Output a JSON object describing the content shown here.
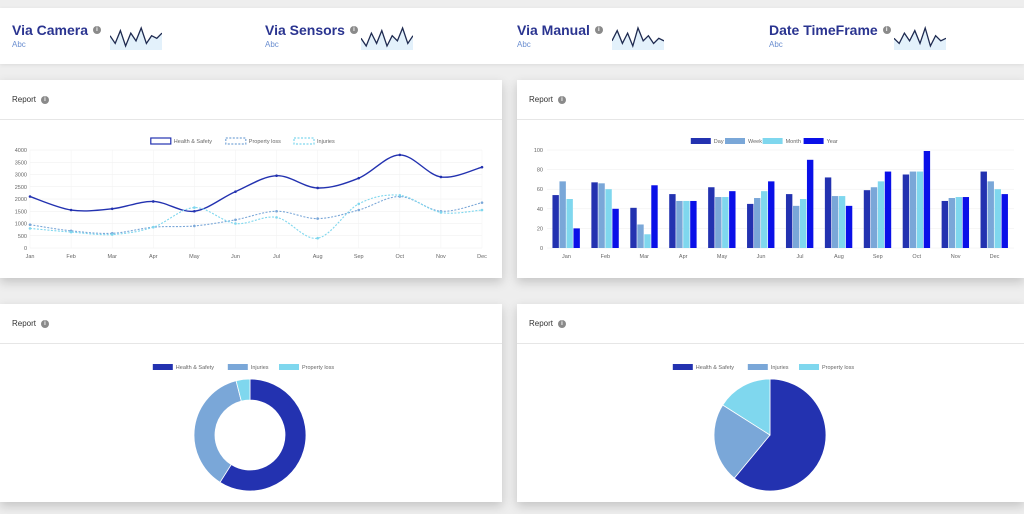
{
  "stats": [
    {
      "title": "Via Camera",
      "sub": "Abc",
      "spark": [
        6,
        3,
        8,
        2,
        7,
        4,
        9,
        3,
        6,
        5,
        7
      ]
    },
    {
      "title": "Via Sensors",
      "sub": "Abc",
      "spark": [
        5,
        2,
        7,
        3,
        8,
        2,
        6,
        4,
        9,
        3,
        6
      ]
    },
    {
      "title": "Via Manual",
      "sub": "Abc",
      "spark": [
        4,
        8,
        3,
        7,
        2,
        9,
        4,
        6,
        3,
        5,
        4
      ]
    },
    {
      "title": "Date TimeFrame",
      "sub": "Abc",
      "spark": [
        5,
        3,
        7,
        4,
        8,
        3,
        9,
        2,
        6,
        4,
        5
      ]
    }
  ],
  "card_title": "Report",
  "months": [
    "Jan",
    "Feb",
    "Mar",
    "Apr",
    "May",
    "Jun",
    "Jul",
    "Aug",
    "Sep",
    "Oct",
    "Nov",
    "Dec"
  ],
  "colors": {
    "c1": "#2332b0",
    "c2": "#7aa7d8",
    "c3": "#7fd7ee",
    "c4": "#0a10e8",
    "spark": "#1e2a50"
  },
  "chart_data": [
    {
      "type": "line",
      "ylim": [
        0,
        4000
      ],
      "yticks": [
        "0",
        "500",
        "1000",
        "1500",
        "2000",
        "2500",
        "3000",
        "3500",
        "4000"
      ],
      "series": [
        {
          "name": "Health & Safety",
          "values": [
            2100,
            1550,
            1600,
            1900,
            1500,
            2300,
            2950,
            2450,
            2850,
            3800,
            2900,
            3300
          ]
        },
        {
          "name": "Property loss",
          "values": [
            950,
            700,
            600,
            850,
            900,
            1150,
            1500,
            1200,
            1550,
            2100,
            1500,
            1850
          ]
        },
        {
          "name": "Injuries",
          "values": [
            800,
            650,
            550,
            850,
            1650,
            1000,
            1250,
            400,
            1800,
            2150,
            1450,
            1550
          ]
        }
      ]
    },
    {
      "type": "bar",
      "ylim": [
        0,
        100
      ],
      "yticks": [
        "0",
        "20",
        "40",
        "60",
        "80",
        "100"
      ],
      "series": [
        {
          "name": "Day",
          "values": [
            54,
            67,
            41,
            55,
            62,
            45,
            55,
            72,
            59,
            75,
            48,
            78
          ]
        },
        {
          "name": "Week",
          "values": [
            68,
            66,
            24,
            48,
            52,
            51,
            43,
            53,
            62,
            78,
            51,
            68
          ]
        },
        {
          "name": "Month",
          "values": [
            50,
            60,
            14,
            48,
            52,
            58,
            50,
            53,
            68,
            78,
            52,
            60
          ]
        },
        {
          "name": "Year",
          "values": [
            20,
            40,
            64,
            48,
            58,
            68,
            90,
            43,
            78,
            99,
            52,
            55
          ]
        }
      ]
    },
    {
      "type": "pie",
      "variant": "doughnut",
      "series": [
        {
          "name": "Health & Safety",
          "value": 59
        },
        {
          "name": "Injuries",
          "value": 37
        },
        {
          "name": "Property loss",
          "value": 4
        }
      ]
    },
    {
      "type": "pie",
      "series": [
        {
          "name": "Health & Safety",
          "value": 61
        },
        {
          "name": "Injuries",
          "value": 23
        },
        {
          "name": "Property loss",
          "value": 16
        }
      ]
    }
  ]
}
